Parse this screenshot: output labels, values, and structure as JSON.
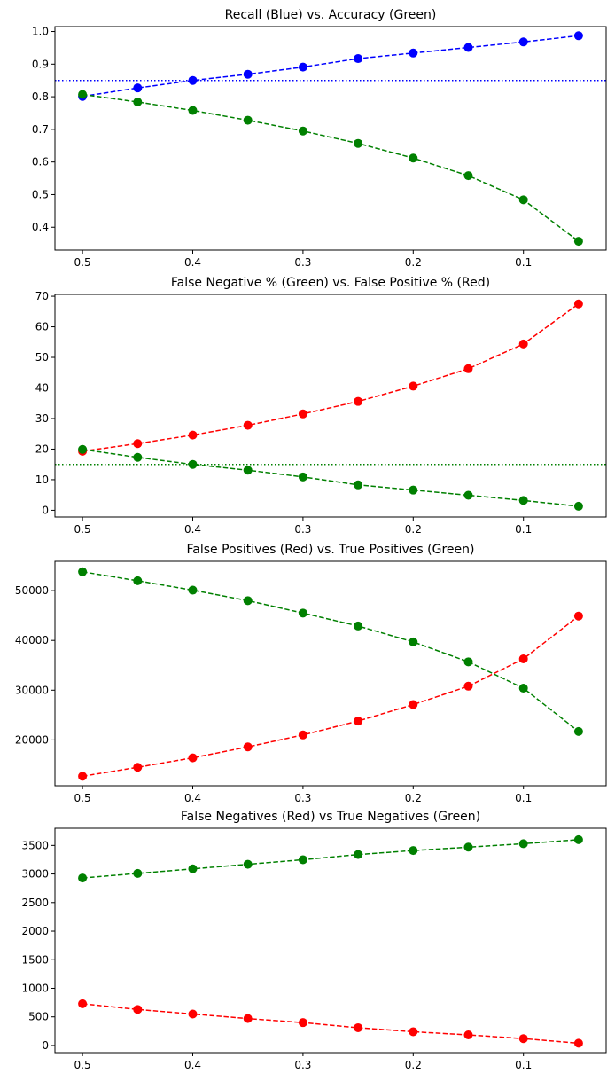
{
  "chart_data": [
    {
      "type": "line",
      "title": "Recall (Blue) vs. Accuracy (Green)",
      "x": [
        0.5,
        0.45,
        0.4,
        0.35,
        0.3,
        0.25,
        0.2,
        0.15,
        0.1,
        0.05
      ],
      "xticks": [
        "0.5",
        "0.4",
        "0.3",
        "0.2",
        "0.1"
      ],
      "xlim": [
        0.525,
        0.025
      ],
      "ylim": [
        0.33,
        1.015
      ],
      "yticks": [
        "0.4",
        "0.5",
        "0.6",
        "0.7",
        "0.8",
        "0.9",
        "1.0"
      ],
      "series": [
        {
          "color": "#0000ff",
          "values": [
            0.801,
            0.827,
            0.85,
            0.869,
            0.891,
            0.917,
            0.934,
            0.951,
            0.968,
            0.987
          ]
        },
        {
          "color": "#008000",
          "values": [
            0.807,
            0.784,
            0.758,
            0.728,
            0.695,
            0.657,
            0.612,
            0.558,
            0.484,
            0.357
          ]
        }
      ],
      "hline": {
        "value": 0.85,
        "color": "#0000ff",
        "style": "dotted"
      }
    },
    {
      "type": "line",
      "title": "False Negative % (Green) vs. False Positive % (Red)",
      "x": [
        0.5,
        0.45,
        0.4,
        0.35,
        0.3,
        0.25,
        0.2,
        0.15,
        0.1,
        0.05
      ],
      "xticks": [
        "0.5",
        "0.4",
        "0.3",
        "0.2",
        "0.1"
      ],
      "xlim": [
        0.525,
        0.025
      ],
      "ylim": [
        -2.2,
        70.6
      ],
      "yticks": [
        "0",
        "10",
        "20",
        "30",
        "40",
        "50",
        "60",
        "70"
      ],
      "series": [
        {
          "color": "#ff0000",
          "values": [
            19.3,
            21.8,
            24.6,
            27.8,
            31.5,
            35.6,
            40.6,
            46.3,
            54.4,
            67.5
          ]
        },
        {
          "color": "#008000",
          "values": [
            19.9,
            17.3,
            15.0,
            13.1,
            10.9,
            8.3,
            6.6,
            4.9,
            3.2,
            1.3
          ]
        }
      ],
      "hline": {
        "value": 15,
        "color": "#008000",
        "style": "dotted"
      }
    },
    {
      "type": "line",
      "title": "False Positives (Red) vs. True Positives (Green)",
      "x": [
        0.5,
        0.45,
        0.4,
        0.35,
        0.3,
        0.25,
        0.2,
        0.15,
        0.1,
        0.05
      ],
      "xticks": [
        "0.5",
        "0.4",
        "0.3",
        "0.2",
        "0.1"
      ],
      "xlim": [
        0.525,
        0.025
      ],
      "ylim": [
        10800,
        55900
      ],
      "yticks": [
        "20000",
        "30000",
        "40000",
        "50000"
      ],
      "series": [
        {
          "color": "#008000",
          "values": [
            53800,
            52000,
            50100,
            48000,
            45500,
            42900,
            39700,
            35700,
            30400,
            21700
          ]
        },
        {
          "color": "#ff0000",
          "values": [
            12700,
            14500,
            16400,
            18600,
            21000,
            23800,
            27100,
            30800,
            36300,
            44900
          ]
        }
      ]
    },
    {
      "type": "line",
      "title": "False Negatives (Red) vs True Negatives (Green)",
      "x": [
        0.5,
        0.45,
        0.4,
        0.35,
        0.3,
        0.25,
        0.2,
        0.15,
        0.1,
        0.05
      ],
      "xticks": [
        "0.5",
        "0.4",
        "0.3",
        "0.2",
        "0.1"
      ],
      "xlim": [
        0.525,
        0.025
      ],
      "ylim": [
        -125,
        3800
      ],
      "yticks": [
        "0",
        "500",
        "1000",
        "1500",
        "2000",
        "2500",
        "3000",
        "3500"
      ],
      "series": [
        {
          "color": "#008000",
          "values": [
            2930,
            3010,
            3090,
            3170,
            3250,
            3340,
            3410,
            3470,
            3530,
            3600
          ]
        },
        {
          "color": "#ff0000",
          "values": [
            730,
            630,
            550,
            470,
            400,
            310,
            240,
            185,
            120,
            40
          ]
        }
      ]
    }
  ]
}
